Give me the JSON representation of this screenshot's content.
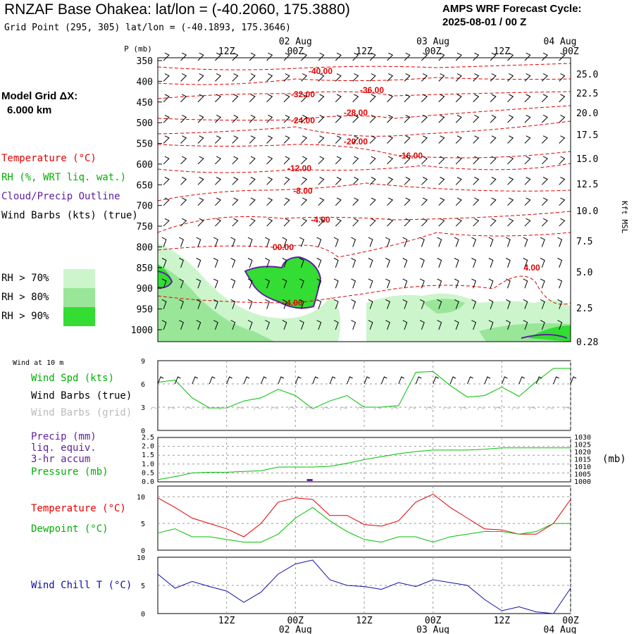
{
  "header": {
    "title": "RNZAF Base Ohakea:  lat/lon = (-40.2060, 175.3880)",
    "subtitle": "Grid Point (295, 305) lat/lon = (-40.1893, 175.3646)",
    "cycle_line1": "AMPS WRF Forecast Cycle:",
    "cycle_line2": "2025-08-01 / 00  Z"
  },
  "sidebar": {
    "grid_line1": "Model Grid ΔX:",
    "grid_line2": "6.000 km",
    "legend": [
      {
        "label": "Temperature (°C)",
        "color": "#e00000"
      },
      {
        "label": "RH (%, WRT liq. wat.)",
        "color": "#00b000"
      },
      {
        "label": "Cloud/Precip Outline",
        "color": "#6020a0"
      },
      {
        "label": "Wind Barbs (kts) (true)",
        "color": "#000000"
      }
    ],
    "rh_legend": [
      {
        "label": "RH > 70%",
        "color": "#ccf5cc"
      },
      {
        "label": "RH > 80%",
        "color": "#99e699"
      },
      {
        "label": "RH > 90%",
        "color": "#33dd33"
      }
    ]
  },
  "time_axis": {
    "ticks": [
      "12Z",
      "00Z",
      "12Z",
      "00Z",
      "12Z",
      "00Z"
    ],
    "dates": [
      "02 Aug",
      "03 Aug",
      "04 Aug"
    ]
  },
  "panel_labels": {
    "wind10": "Wind at 10 m",
    "wind_spd": "Wind Spd (kts)",
    "barbs_true": "Wind Barbs (true)",
    "barbs_grid": "Wind Barbs (grid)",
    "precip1": "Precip (mm)",
    "precip2": "liq. equiv.",
    "precip3": "3-hr accum",
    "pressure": "Pressure (mb)",
    "pressure_unit": "(mb)",
    "temperature": "Temperature (°C)",
    "dewpoint": "Dewpoint (°C)",
    "windchill": "Wind Chill T (°C)",
    "p_axis_label": "P (mb)",
    "kft_label": "Kft MSL"
  },
  "chart_data": [
    {
      "type": "heatmap",
      "title": "Vertical cross-section",
      "ylabel": "P (mb)",
      "y2label": "Kft MSL",
      "p_levels": [
        350,
        400,
        450,
        500,
        550,
        600,
        650,
        700,
        750,
        800,
        850,
        900,
        950,
        1000
      ],
      "kft_levels": [
        "25.0",
        "22.5",
        "20.0",
        "17.5",
        "15.0",
        "12.5",
        "10.0",
        "7.5",
        "5.0",
        "2.5",
        "0.28"
      ],
      "temperature_labels": [
        "-40.00",
        "-32.00",
        "-36.00",
        "-28.00",
        "-24.00",
        "-20.00",
        "-16.00",
        "-12.00",
        "-8.00",
        "-4.00",
        "00.00",
        "4.00",
        "4.00"
      ]
    },
    {
      "type": "line",
      "title": "Wind Spd (kts)",
      "ylim": [
        0,
        9
      ],
      "yticks": [
        "9",
        "6",
        "3",
        "0"
      ],
      "x_hours": [
        0,
        3,
        6,
        9,
        12,
        15,
        18,
        21,
        24,
        27,
        30,
        33,
        36,
        39,
        42,
        45,
        48,
        51,
        54,
        57,
        60,
        63,
        66,
        69,
        72
      ],
      "values": [
        6.2,
        6.5,
        4.2,
        2.9,
        2.9,
        3.8,
        4.2,
        5.3,
        4.5,
        2.8,
        3.8,
        4.5,
        3.0,
        3.0,
        3.2,
        7.5,
        7.6,
        5.8,
        4.3,
        4.5,
        5.6,
        4.4,
        6.3,
        8.0,
        8.0
      ]
    },
    {
      "type": "line",
      "title": "Precip / Pressure",
      "ylim": [
        0,
        2.5
      ],
      "yticks": [
        "2.5",
        "2.0",
        "1.5",
        "1.0",
        "0.5",
        "0.0"
      ],
      "y2ticks": [
        "1030",
        "1025",
        "1020",
        "1015",
        "1010",
        "1005",
        "1000"
      ],
      "series": [
        {
          "name": "Pressure (mb)",
          "x_hours": [
            0,
            3,
            6,
            9,
            12,
            15,
            18,
            21,
            24,
            27,
            30,
            33,
            36,
            39,
            42,
            45,
            48,
            51,
            54,
            57,
            60,
            63,
            66,
            69,
            72
          ],
          "values": [
            1001.5,
            1003.5,
            1006.0,
            1006.5,
            1006.5,
            1007.0,
            1007.5,
            1010.0,
            1010.0,
            1010.0,
            1010.5,
            1012.5,
            1015.0,
            1017.0,
            1019.0,
            1020.5,
            1021.5,
            1021.5,
            1021.5,
            1022.0,
            1023.0,
            1023.0,
            1023.0,
            1023.0,
            1023.0
          ]
        },
        {
          "name": "Precip (mm)",
          "x_hours": [
            26,
            27
          ],
          "values": [
            0.1,
            0.1
          ]
        }
      ]
    },
    {
      "type": "line",
      "title": "Temperature / Dewpoint",
      "ylim": [
        0,
        12
      ],
      "yticks": [
        "10",
        "5",
        "0"
      ],
      "series": [
        {
          "name": "Temperature (°C)",
          "x_hours": [
            0,
            3,
            6,
            9,
            12,
            15,
            18,
            21,
            24,
            27,
            30,
            33,
            36,
            39,
            42,
            45,
            48,
            51,
            54,
            57,
            60,
            63,
            66,
            69,
            72
          ],
          "values": [
            9.8,
            8.0,
            6.0,
            5.0,
            4.0,
            2.5,
            5.0,
            9.0,
            9.8,
            9.5,
            6.5,
            6.5,
            4.8,
            4.5,
            5.5,
            9.0,
            10.5,
            8.0,
            6.0,
            4.0,
            3.8,
            3.0,
            3.0,
            5.0,
            9.5
          ]
        },
        {
          "name": "Dewpoint (°C)",
          "x_hours": [
            0,
            3,
            6,
            9,
            12,
            15,
            18,
            21,
            24,
            27,
            30,
            33,
            36,
            39,
            42,
            45,
            48,
            51,
            54,
            57,
            60,
            63,
            66,
            69,
            72
          ],
          "values": [
            3.2,
            4.0,
            2.5,
            2.5,
            2.0,
            1.5,
            1.5,
            3.0,
            6.0,
            8.0,
            5.5,
            3.5,
            2.0,
            1.5,
            2.5,
            2.5,
            1.5,
            2.5,
            3.0,
            3.5,
            3.5,
            3.0,
            3.5,
            5.0,
            5.0
          ]
        }
      ]
    },
    {
      "type": "line",
      "title": "Wind Chill T (°C)",
      "ylim": [
        0,
        10
      ],
      "yticks": [
        "10",
        "5",
        "0"
      ],
      "x_hours": [
        0,
        3,
        6,
        9,
        12,
        15,
        18,
        21,
        24,
        27,
        30,
        33,
        36,
        39,
        42,
        45,
        48,
        51,
        54,
        57,
        60,
        63,
        66,
        69,
        72
      ],
      "values": [
        7.0,
        4.5,
        5.7,
        4.8,
        4.0,
        2.0,
        3.8,
        7.0,
        8.8,
        9.5,
        6.0,
        5.0,
        4.8,
        4.3,
        5.5,
        4.8,
        6.0,
        5.5,
        5.0,
        2.5,
        0.5,
        1.2,
        0.3,
        0.0,
        4.5
      ]
    }
  ]
}
